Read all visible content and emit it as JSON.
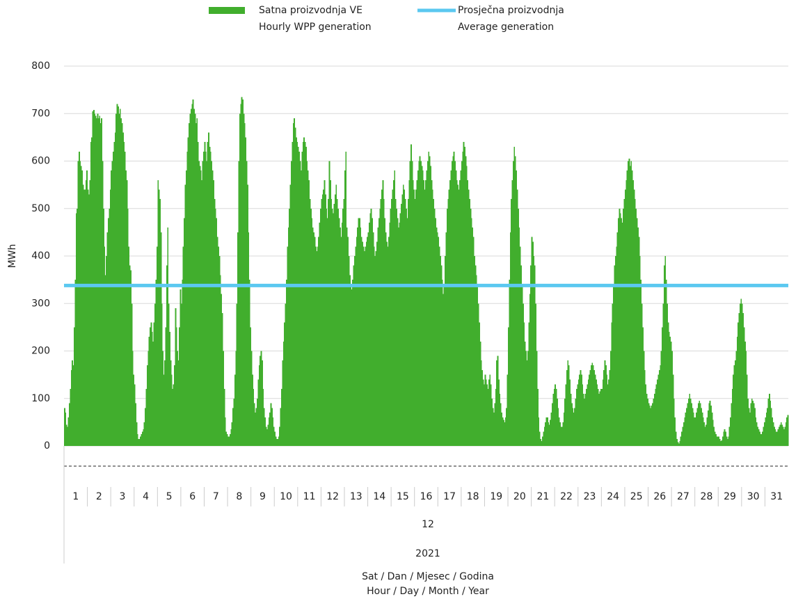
{
  "chart_data": {
    "type": "bar",
    "series": [
      {
        "name": [
          "Satna proizvodnja VE",
          "Hourly WPP generation"
        ],
        "color": "#41ae2d",
        "values": [
          80,
          70,
          45,
          40,
          60,
          90,
          120,
          160,
          180,
          170,
          250,
          350,
          490,
          500,
          600,
          620,
          600,
          590,
          580,
          550,
          540,
          540,
          560,
          580,
          540,
          530,
          560,
          640,
          650,
          705,
          708,
          700,
          695,
          690,
          700,
          690,
          695,
          680,
          690,
          600,
          500,
          420,
          360,
          400,
          450,
          480,
          500,
          540,
          580,
          600,
          620,
          640,
          660,
          700,
          720,
          715,
          700,
          710,
          690,
          680,
          660,
          640,
          620,
          580,
          560,
          500,
          420,
          380,
          370,
          300,
          200,
          150,
          130,
          90,
          50,
          25,
          15,
          15,
          20,
          25,
          30,
          35,
          50,
          80,
          120,
          170,
          200,
          230,
          250,
          260,
          240,
          220,
          260,
          300,
          350,
          420,
          560,
          540,
          520,
          450,
          300,
          200,
          150,
          180,
          250,
          380,
          460,
          300,
          240,
          180,
          150,
          120,
          130,
          170,
          290,
          250,
          200,
          180,
          250,
          330,
          300,
          350,
          420,
          480,
          550,
          580,
          620,
          650,
          680,
          700,
          710,
          720,
          730,
          710,
          700,
          680,
          690,
          640,
          600,
          590,
          580,
          560,
          600,
          620,
          640,
          620,
          600,
          640,
          660,
          630,
          620,
          600,
          580,
          560,
          520,
          500,
          480,
          440,
          420,
          400,
          360,
          320,
          280,
          200,
          120,
          60,
          30,
          25,
          20,
          20,
          25,
          35,
          50,
          80,
          100,
          150,
          200,
          300,
          450,
          600,
          700,
          720,
          735,
          730,
          700,
          680,
          650,
          600,
          550,
          450,
          350,
          250,
          200,
          150,
          120,
          90,
          70,
          80,
          100,
          140,
          170,
          190,
          200,
          180,
          120,
          80,
          60,
          40,
          35,
          45,
          60,
          70,
          90,
          80,
          60,
          40,
          30,
          20,
          15,
          15,
          20,
          40,
          80,
          120,
          180,
          220,
          260,
          300,
          350,
          420,
          460,
          500,
          550,
          600,
          640,
          680,
          690,
          670,
          650,
          640,
          630,
          620,
          600,
          580,
          620,
          640,
          650,
          640,
          630,
          600,
          580,
          560,
          520,
          500,
          480,
          460,
          450,
          440,
          420,
          410,
          420,
          440,
          470,
          500,
          520,
          530,
          540,
          560,
          530,
          500,
          480,
          520,
          600,
          560,
          520,
          500,
          490,
          510,
          530,
          550,
          520,
          500,
          480,
          460,
          440,
          470,
          500,
          520,
          580,
          620,
          460,
          440,
          400,
          360,
          340,
          330,
          350,
          380,
          400,
          420,
          440,
          460,
          480,
          480,
          460,
          440,
          430,
          420,
          410,
          420,
          430,
          440,
          450,
          470,
          490,
          500,
          480,
          450,
          420,
          400,
          410,
          430,
          460,
          480,
          500,
          520,
          540,
          560,
          520,
          480,
          450,
          430,
          420,
          440,
          470,
          500,
          520,
          540,
          560,
          580,
          520,
          500,
          480,
          460,
          470,
          490,
          510,
          530,
          550,
          540,
          520,
          500,
          480,
          520,
          560,
          600,
          635,
          600,
          560,
          540,
          520,
          540,
          560,
          580,
          600,
          610,
          600,
          590,
          580,
          560,
          540,
          560,
          580,
          600,
          620,
          610,
          590,
          560,
          540,
          520,
          500,
          480,
          460,
          450,
          440,
          420,
          400,
          380,
          350,
          320,
          340,
          400,
          450,
          500,
          520,
          540,
          560,
          580,
          600,
          610,
          620,
          600,
          580,
          560,
          550,
          540,
          560,
          580,
          600,
          620,
          640,
          630,
          610,
          590,
          560,
          540,
          520,
          500,
          480,
          460,
          440,
          400,
          380,
          360,
          340,
          300,
          260,
          220,
          180,
          160,
          140,
          130,
          150,
          140,
          130,
          120,
          140,
          150,
          130,
          100,
          80,
          70,
          90,
          120,
          180,
          190,
          140,
          110,
          90,
          70,
          60,
          55,
          50,
          60,
          80,
          150,
          250,
          350,
          450,
          520,
          560,
          600,
          630,
          610,
          580,
          540,
          500,
          460,
          420,
          380,
          340,
          300,
          260,
          220,
          200,
          180,
          200,
          260,
          320,
          380,
          440,
          430,
          400,
          380,
          300,
          200,
          120,
          60,
          30,
          15,
          10,
          20,
          30,
          40,
          50,
          60,
          60,
          50,
          45,
          55,
          70,
          90,
          110,
          120,
          130,
          120,
          100,
          80,
          60,
          50,
          40,
          40,
          50,
          70,
          100,
          130,
          160,
          180,
          170,
          140,
          110,
          90,
          80,
          70,
          80,
          100,
          120,
          130,
          140,
          150,
          160,
          150,
          130,
          110,
          100,
          110,
          120,
          130,
          140,
          150,
          160,
          170,
          175,
          170,
          160,
          150,
          140,
          130,
          120,
          110,
          115,
          120,
          120,
          140,
          160,
          180,
          170,
          150,
          130,
          140,
          160,
          200,
          260,
          300,
          340,
          380,
          400,
          420,
          450,
          480,
          500,
          490,
          480,
          470,
          500,
          520,
          540,
          560,
          580,
          600,
          605,
          590,
          600,
          580,
          560,
          540,
          520,
          500,
          480,
          460,
          440,
          400,
          350,
          300,
          250,
          200,
          160,
          130,
          110,
          100,
          90,
          85,
          80,
          85,
          90,
          100,
          110,
          120,
          130,
          140,
          150,
          160,
          170,
          200,
          250,
          300,
          380,
          400,
          350,
          300,
          260,
          240,
          230,
          220,
          200,
          150,
          100,
          60,
          30,
          15,
          8,
          5,
          10,
          20,
          30,
          40,
          50,
          60,
          70,
          80,
          90,
          100,
          110,
          100,
          90,
          80,
          70,
          60,
          60,
          70,
          80,
          90,
          95,
          90,
          80,
          70,
          60,
          50,
          40,
          45,
          60,
          75,
          90,
          95,
          85,
          70,
          55,
          40,
          30,
          25,
          20,
          20,
          20,
          15,
          10,
          12,
          20,
          30,
          35,
          30,
          20,
          15,
          20,
          40,
          60,
          90,
          120,
          150,
          170,
          180,
          200,
          230,
          260,
          280,
          300,
          310,
          300,
          280,
          250,
          220,
          200,
          150,
          100,
          80,
          70,
          90,
          100,
          95,
          90,
          80,
          60,
          50,
          40,
          35,
          30,
          25,
          25,
          30,
          40,
          50,
          60,
          70,
          80,
          100,
          110,
          95,
          80,
          60,
          50,
          40,
          35,
          30,
          30,
          35,
          40,
          45,
          50,
          45,
          40,
          35,
          40,
          50,
          60,
          65
        ]
      }
    ],
    "average": {
      "name": [
        "Prosječna proizvodnja",
        "Average generation"
      ],
      "color": "#5bc8f0",
      "value": 338
    },
    "days": [
      "1",
      "2",
      "3",
      "4",
      "5",
      "6",
      "7",
      "8",
      "9",
      "10",
      "11",
      "12",
      "13",
      "14",
      "15",
      "16",
      "17",
      "18",
      "19",
      "20",
      "21",
      "22",
      "23",
      "24",
      "25",
      "26",
      "27",
      "28",
      "29",
      "30",
      "31"
    ],
    "month": "12",
    "year": "2021",
    "y_label": "MWh",
    "x_label": [
      "Sat / Dan / Mjesec / Godina",
      "Hour / Day / Month / Year"
    ],
    "ylim": [
      0,
      800
    ],
    "yticks": [
      0,
      100,
      200,
      300,
      400,
      500,
      600,
      700,
      800
    ],
    "grid": true
  }
}
